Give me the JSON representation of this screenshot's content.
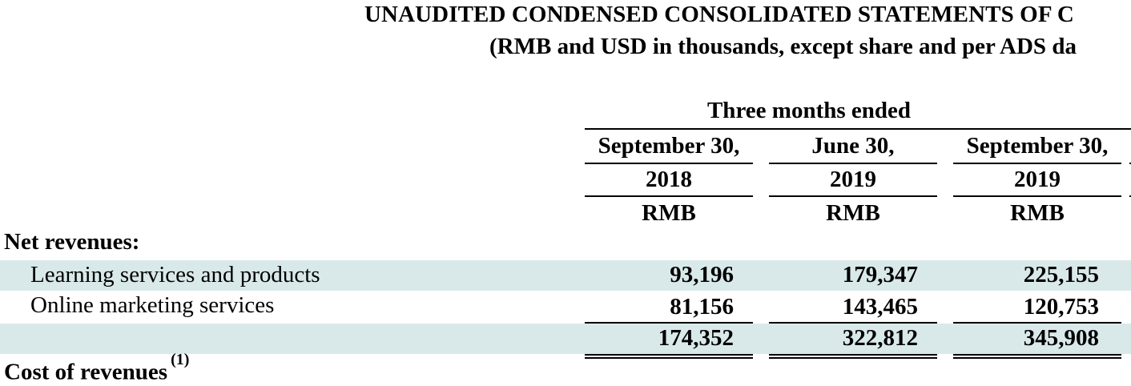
{
  "document": {
    "title": "UNAUDITED CONDENSED CONSOLIDATED STATEMENTS OF C",
    "subtitle": "(RMB and USD in thousands, except share and per ADS da",
    "period_header": "Three months ended",
    "columns": [
      {
        "date": "September 30,",
        "year": "2018",
        "currency": "RMB"
      },
      {
        "date": "June 30,",
        "year": "2019",
        "currency": "RMB"
      },
      {
        "date": "September 30,",
        "year": "2019",
        "currency": "RMB"
      }
    ],
    "section_net_revenues": "Net revenues:",
    "rows": [
      {
        "label": "Learning services and products",
        "values": [
          "93,196",
          "179,347",
          "225,155"
        ]
      },
      {
        "label": "Online marketing services",
        "values": [
          "81,156",
          "143,465",
          "120,753"
        ]
      },
      {
        "label": "",
        "values": [
          "174,352",
          "322,812",
          "345,908"
        ]
      }
    ],
    "section_cost_of_revenues": "Cost of revenues",
    "cost_footnote": "(1)"
  }
}
